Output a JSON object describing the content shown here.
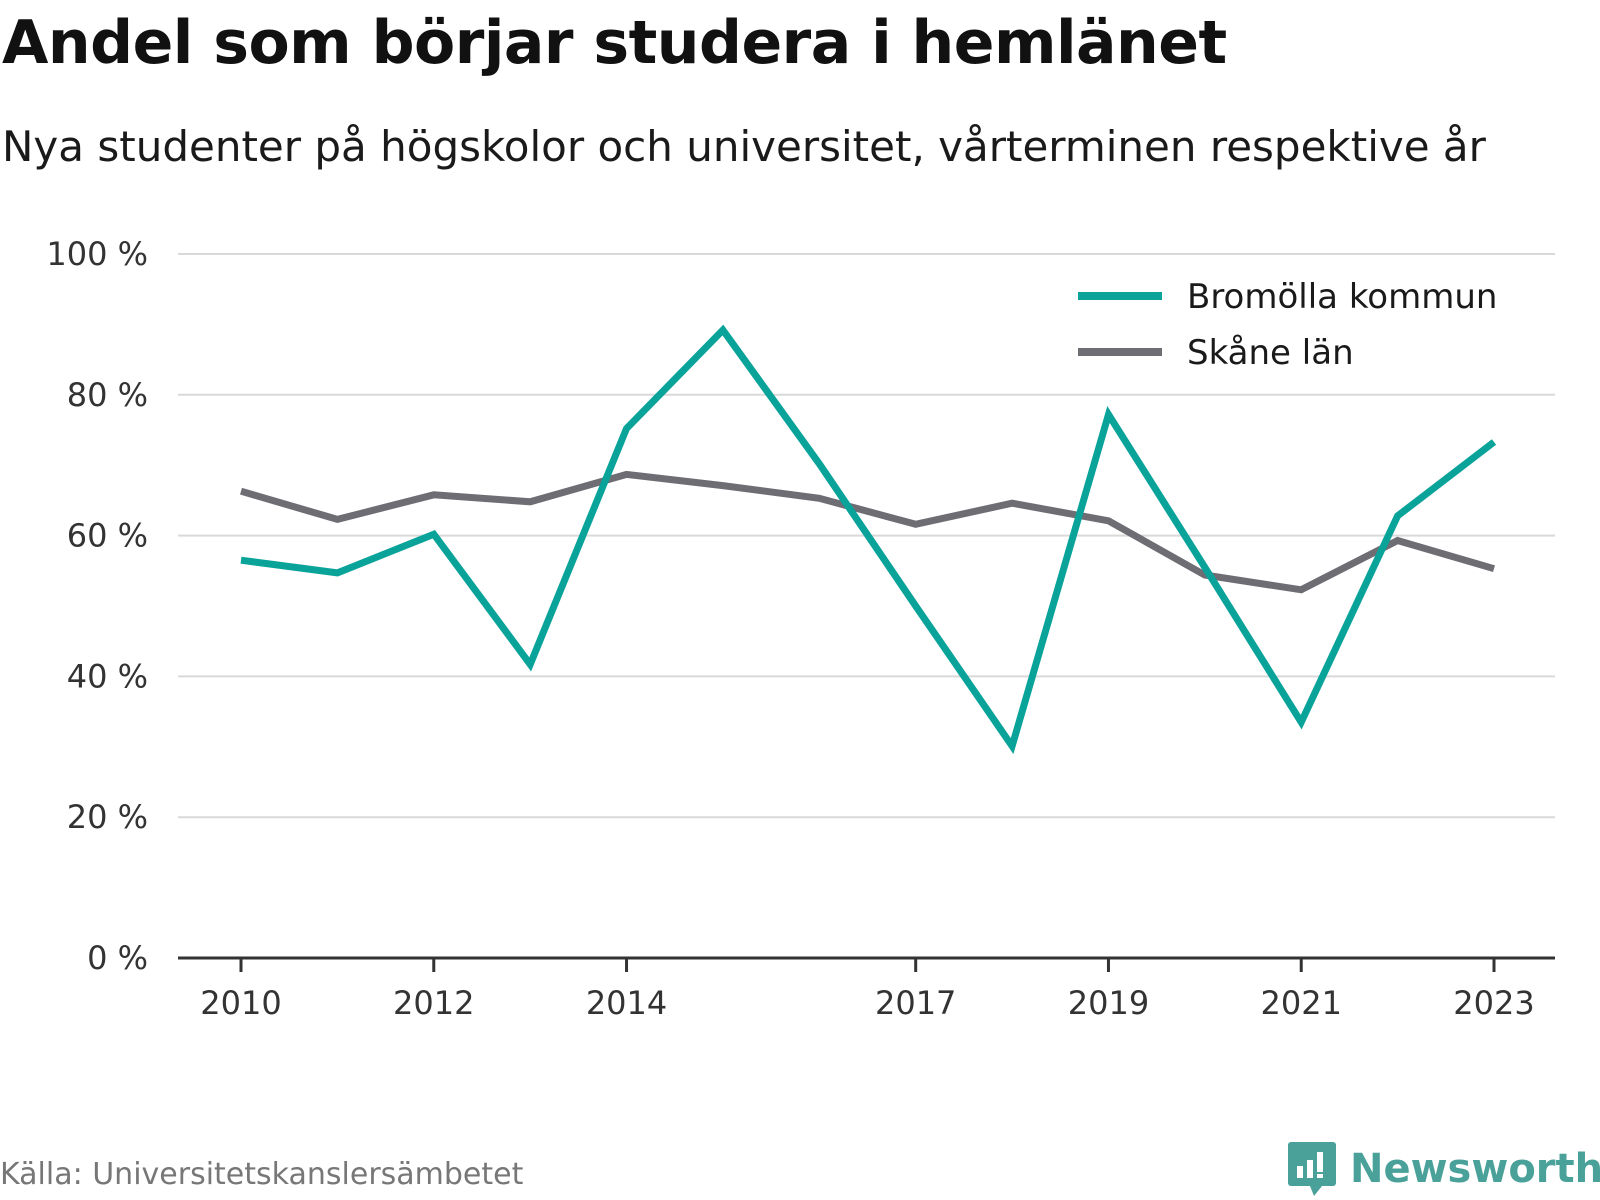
{
  "title": "Andel som börjar studera i hemlänet",
  "subtitle": "Nya studenter på högskolor och universitet, vårterminen respektive år",
  "source": "Källa: Universitetskanslersämbetet",
  "brand": "Newsworthy",
  "colors": {
    "bromolla": "#0aa39a",
    "skane": "#6d6d73",
    "grid": "#d9d9d9",
    "axis": "#333333",
    "brand": "#4aa19a"
  },
  "chart_data": {
    "type": "line",
    "x": [
      2010,
      2011,
      2012,
      2013,
      2014,
      2015,
      2016,
      2017,
      2018,
      2019,
      2020,
      2021,
      2022,
      2023
    ],
    "x_tick_labels": [
      "2010",
      "2012",
      "2014",
      "2017",
      "2019",
      "2021",
      "2023"
    ],
    "x_tick_values": [
      2010,
      2012,
      2014,
      2017,
      2019,
      2021,
      2023
    ],
    "y_tick_values": [
      0,
      20,
      40,
      60,
      80,
      100
    ],
    "y_tick_labels": [
      "0 %",
      "20 %",
      "40 %",
      "60 %",
      "80 %",
      "100 %"
    ],
    "ylim": [
      0,
      100
    ],
    "grid": true,
    "legend_position": "top-right",
    "series": [
      {
        "name": "Bromölla kommun",
        "color_key": "bromolla",
        "values": [
          56.5,
          54.7,
          60.2,
          41.7,
          75.2,
          89.2,
          70.2,
          50.0,
          30.1,
          77.2,
          55.5,
          33.5,
          62.8,
          73.3
        ]
      },
      {
        "name": "Skåne län",
        "color_key": "skane",
        "values": [
          66.3,
          62.3,
          65.8,
          64.8,
          68.7,
          67.1,
          65.3,
          61.6,
          64.6,
          62.1,
          54.4,
          52.3,
          59.3,
          55.3
        ]
      }
    ]
  }
}
